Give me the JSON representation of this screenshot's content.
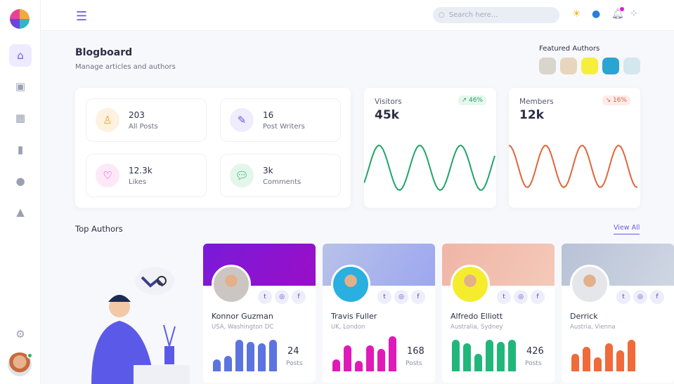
{
  "header": {
    "search_placeholder": "Search here...",
    "icons": [
      "menu-icon",
      "search-icon",
      "sun-icon",
      "palette-icon",
      "bell-icon",
      "apps-icon"
    ],
    "notification_color": "#e01ad4"
  },
  "sidebar": {
    "items": [
      {
        "icon": "home-icon",
        "active": true
      },
      {
        "icon": "gift-icon"
      },
      {
        "icon": "dashboard-icon"
      },
      {
        "icon": "books-icon"
      },
      {
        "icon": "users-icon"
      },
      {
        "icon": "shapes-icon"
      },
      {
        "icon": "settings-icon"
      }
    ],
    "accent": "#6a5ae0"
  },
  "page": {
    "title": "Blogboard",
    "subtitle": "Manage articles and authors",
    "featured_label": "Featured Authors"
  },
  "stats": [
    {
      "value": "203",
      "label": "All Posts",
      "icon": "user-icon",
      "color": "#f0a43a"
    },
    {
      "value": "16",
      "label": "Post Writers",
      "icon": "edit-icon",
      "color": "#6a5ae0"
    },
    {
      "value": "12.3k",
      "label": "Likes",
      "icon": "heart-icon",
      "color": "#e01ad4"
    },
    {
      "value": "3k",
      "label": "Comments",
      "icon": "chat-icon",
      "color": "#1fa567"
    }
  ],
  "metrics": [
    {
      "label": "Visitors",
      "value": "45k",
      "change": "46%",
      "trend": "up",
      "color": "#1fa567"
    },
    {
      "label": "Members",
      "value": "12k",
      "change": "16%",
      "trend": "down",
      "color": "#e0663a"
    }
  ],
  "top_authors": {
    "title": "Top Authors",
    "view_all": "View All",
    "authors": [
      {
        "name": "Konnor Guzman",
        "location": "USA, Washington DC",
        "posts": "24",
        "posts_label": "Posts",
        "color": "#5b74e0",
        "bars": [
          0.35,
          0.45,
          0.9,
          0.85,
          0.8,
          0.9
        ]
      },
      {
        "name": "Travis Fuller",
        "location": "UK, London",
        "posts": "168",
        "posts_label": "Posts",
        "color": "#e01ab8",
        "bars": [
          0.35,
          0.75,
          0.3,
          0.75,
          0.65,
          1.0
        ]
      },
      {
        "name": "Alfredo Elliott",
        "location": "Australia, Sydney",
        "posts": "426",
        "posts_label": "Posts",
        "color": "#22b77a",
        "bars": [
          0.9,
          0.8,
          0.5,
          0.9,
          0.85,
          0.9
        ]
      },
      {
        "name": "Derrick",
        "location": "Austria, Vienna",
        "posts": "",
        "posts_label": "",
        "color": "#f06a3a",
        "bars": [
          0.5,
          0.7,
          0.4,
          0.8,
          0.6,
          0.9
        ]
      }
    ]
  }
}
